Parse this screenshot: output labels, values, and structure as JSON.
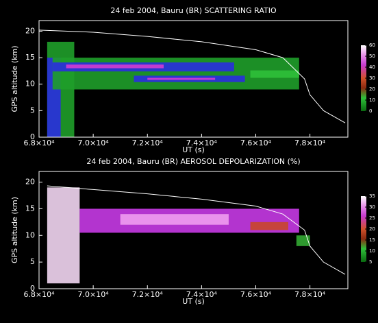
{
  "chart_data": [
    {
      "type": "heatmap",
      "title": "24 feb 2004, Bauru (BR)   SCATTERING RATIO",
      "x_label": "UT (s)",
      "y_label": "GPS altitude (km)",
      "xlim": [
        68000,
        79400
      ],
      "ylim": [
        0,
        22
      ],
      "xticks": [
        {
          "value": 68000,
          "label": "6.8×10⁴"
        },
        {
          "value": 70000,
          "label": "7.0×10⁴"
        },
        {
          "value": 72000,
          "label": "7.2×10⁴"
        },
        {
          "value": 74000,
          "label": "7.4×10⁴"
        },
        {
          "value": 76000,
          "label": "7.6×10⁴"
        },
        {
          "value": 78000,
          "label": "7.8×10⁴"
        }
      ],
      "yticks": [
        0,
        5,
        10,
        15,
        20
      ],
      "cbar_lim": [
        0,
        60
      ],
      "cbar_ticks": [
        0,
        10,
        20,
        30,
        40,
        50,
        60
      ],
      "cells": [
        {
          "x": [
            68300,
            69300
          ],
          "y": [
            0,
            18
          ],
          "value": 5,
          "color": "#1f9e2a"
        },
        {
          "x": [
            68300,
            68800
          ],
          "y": [
            0,
            15
          ],
          "value": 15,
          "color": "#2a2ee0"
        },
        {
          "x": [
            68500,
            77600
          ],
          "y": [
            9,
            15
          ],
          "value": 5,
          "color": "#1f9e2a"
        },
        {
          "x": [
            68500,
            75200
          ],
          "y": [
            12.4,
            14.1
          ],
          "value": 15,
          "color": "#2a2ee0"
        },
        {
          "x": [
            69000,
            72600
          ],
          "y": [
            13,
            13.7
          ],
          "value": 40,
          "color": "#d23cd2"
        },
        {
          "x": [
            71500,
            75600
          ],
          "y": [
            10.4,
            11.6
          ],
          "value": 15,
          "color": "#2a2ee0"
        },
        {
          "x": [
            72000,
            74500
          ],
          "y": [
            10.8,
            11.2
          ],
          "value": 40,
          "color": "#d23cd2"
        },
        {
          "x": [
            75800,
            77600
          ],
          "y": [
            11.2,
            12.6
          ],
          "value": 8,
          "color": "#2fc03a"
        }
      ],
      "line": {
        "color": "#ffffff",
        "x": [
          68000,
          70000,
          72000,
          74000,
          76000,
          77000,
          77800,
          78000,
          78500,
          79300
        ],
        "values": [
          20.2,
          19.8,
          19,
          18,
          16.5,
          15,
          11,
          8,
          5,
          2.7
        ]
      }
    },
    {
      "type": "heatmap",
      "title": "24 feb 2004, Bauru (BR)  AEROSOL DEPOLARIZATION (%)",
      "x_label": "UT (s)",
      "y_label": "GPS altitude (km)",
      "xlim": [
        68000,
        79400
      ],
      "ylim": [
        0,
        22
      ],
      "xticks": [
        {
          "value": 68000,
          "label": "6.8×10⁴"
        },
        {
          "value": 70000,
          "label": "7.0×10⁴"
        },
        {
          "value": 72000,
          "label": "7.2×10⁴"
        },
        {
          "value": 74000,
          "label": "7.4×10⁴"
        },
        {
          "value": 76000,
          "label": "7.6×10⁴"
        },
        {
          "value": 78000,
          "label": "7.8×10⁴"
        }
      ],
      "yticks": [
        0,
        5,
        10,
        15,
        20
      ],
      "cbar_lim": [
        5,
        35
      ],
      "cbar_ticks": [
        5,
        10,
        15,
        20,
        25,
        30,
        35
      ],
      "cells": [
        {
          "x": [
            68300,
            69500
          ],
          "y": [
            1,
            19
          ],
          "value": 35,
          "color": "#f2d6f2"
        },
        {
          "x": [
            69500,
            77600
          ],
          "y": [
            10.5,
            15
          ],
          "value": 30,
          "color": "#c63ae6"
        },
        {
          "x": [
            71000,
            75000
          ],
          "y": [
            12,
            14
          ],
          "value": 33,
          "color": "#ee9cee"
        },
        {
          "x": [
            75800,
            77200
          ],
          "y": [
            11,
            12.5
          ],
          "value": 20,
          "color": "#c8462a"
        },
        {
          "x": [
            77500,
            78000
          ],
          "y": [
            8,
            10
          ],
          "value": 8,
          "color": "#33aa33"
        }
      ],
      "line": {
        "color": "#ffffff",
        "x": [
          68300,
          70000,
          72000,
          74000,
          76000,
          77000,
          77800,
          78000,
          78500,
          79300
        ],
        "values": [
          19.3,
          18.6,
          17.8,
          16.8,
          15.5,
          14,
          11,
          8,
          5,
          2.7
        ]
      }
    }
  ]
}
